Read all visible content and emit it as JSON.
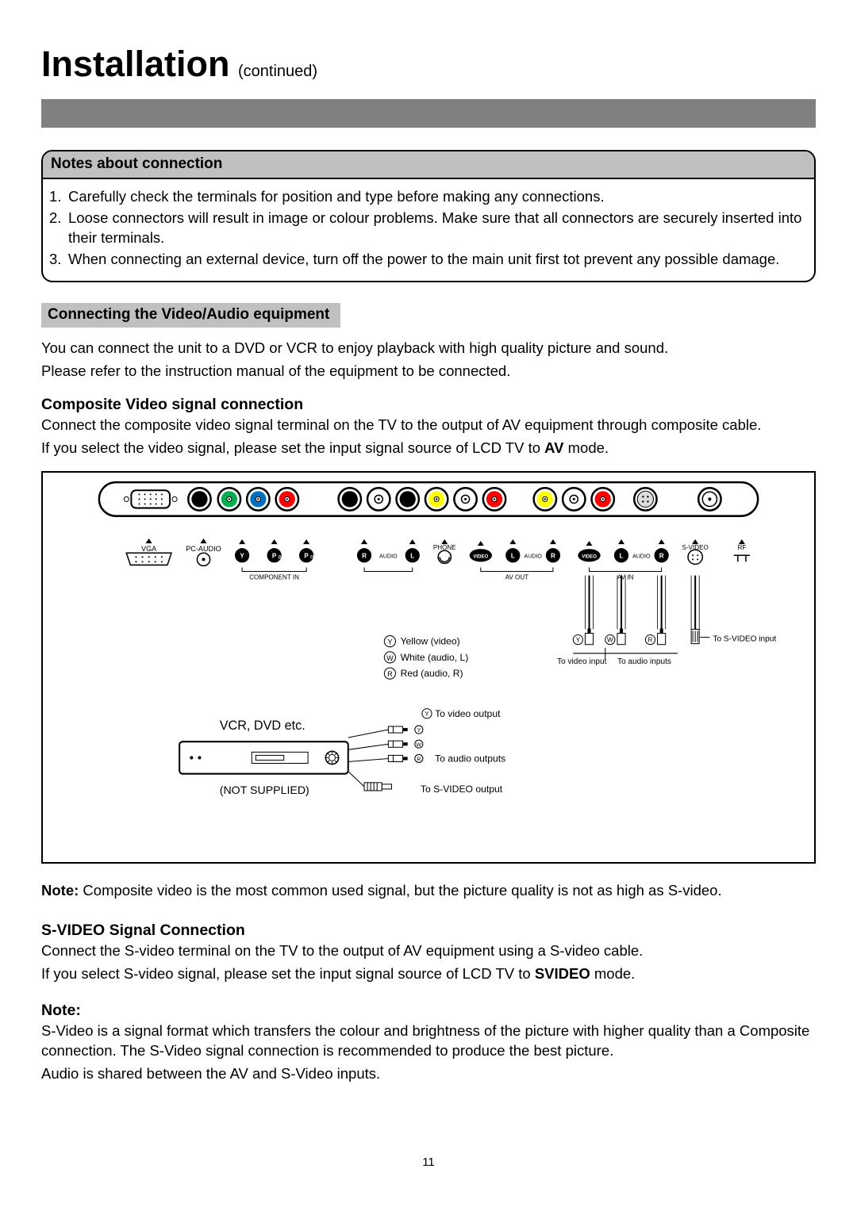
{
  "colors": {
    "grayBar": "#808080",
    "notesHeaderBg": "#c0c0c0",
    "subHeaderBg": "#c0c0c0",
    "yellow": "#ffff00",
    "green": "#00b050",
    "blue": "#0070c0",
    "red": "#ff0000",
    "white": "#ffffff",
    "black": "#000000",
    "lightgray": "#dddddd"
  },
  "title": {
    "main": "Installation",
    "sub": "(continued)"
  },
  "notes": {
    "header": "Notes about connection",
    "items": [
      "Carefully check the terminals for position and type before making any connections.",
      "Loose connectors will result in image or colour problems. Make sure that all connectors are securely inserted into their terminals.",
      "When connecting an external device, turn off the power to the main unit first tot prevent any possible damage."
    ]
  },
  "subHeader": "Connecting the Video/Audio equipment",
  "intro1": "You can connect the unit to a DVD or VCR to enjoy playback with high quality picture and sound.",
  "intro2": "Please refer to the instruction manual of the equipment to be connected.",
  "composite": {
    "heading": "Composite Video signal connection",
    "p1": "Connect the composite video signal terminal on the TV to the output of AV equipment through composite cable.",
    "p2a": "If you select the video signal, please set the input signal source of LCD TV to ",
    "p2b": "AV",
    "p2c": " mode."
  },
  "diagram": {
    "row1Labels": [
      "VGA",
      "PC-AUDIO",
      "Y",
      "PB",
      "PR",
      "R",
      "AUDIO",
      "L",
      "PHONE",
      "VIDEO",
      "L",
      "AUDIO",
      "R",
      "VIDEO",
      "L",
      "AUDIO",
      "R",
      "S-VIDEO",
      "RF"
    ],
    "componentIn": "COMPONENT IN",
    "avOut": "AV OUT",
    "avIn": "AV IN",
    "legend": {
      "y": "Yellow (video)",
      "w": "White   (audio, L)",
      "r": "Red     (audio, R)"
    },
    "cableLabels": {
      "toVideoInput": "To video input",
      "toAudioInputs": "To audio inputs",
      "toSvideoInput": "To S-VIDEO input"
    },
    "vcrLabel": "VCR, DVD etc.",
    "notSupplied": "(NOT SUPPLIED)",
    "toVideoOutput": "To video output",
    "toAudioOutputs": "To audio outputs",
    "toSvideoOutput": "To S-VIDEO output"
  },
  "noteBelow": {
    "label": "Note:",
    "text": " Composite video is the most common used signal, but the picture quality is not as high as S-video."
  },
  "svideo": {
    "heading": "S-VIDEO Signal Connection",
    "p1": "Connect the S-video terminal on the TV to the output of AV equipment using a S-video cable.",
    "p2a": "If you select S-video signal, please set the input signal source of LCD TV to ",
    "p2b": "SVIDEO",
    "p2c": " mode."
  },
  "note2": {
    "label": "Note:",
    "p1": "S-Video is a signal format which transfers the colour and brightness of the picture with higher quality than a Composite connection. The S-Video signal connection is recommended to produce the best picture.",
    "p2": "Audio is shared between the AV and S-Video inputs."
  },
  "pageNumber": "11"
}
